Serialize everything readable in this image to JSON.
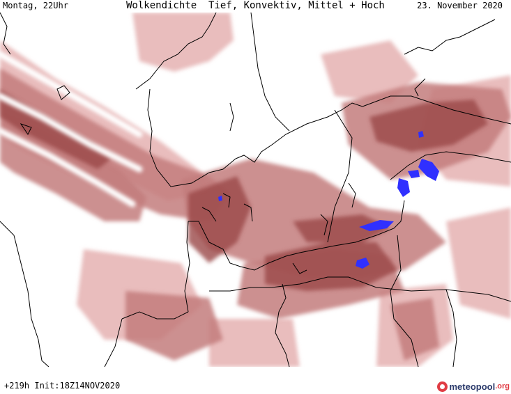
{
  "header": {
    "left": "Montag, 22Uhr",
    "title": "Wolkendichte  Tief, Konvektiv, Mittel + Hoch",
    "date": "23. November 2020"
  },
  "footer": {
    "init": "+219h Init:18Z14NOV2020",
    "brand_main": "meteopool",
    "brand_suffix": ".org"
  },
  "colors": {
    "cloud_light": "#e7b6b6",
    "cloud_mid": "#c37d7d",
    "cloud_dark": "#9a4848",
    "precip": "#3030ff",
    "coastline": "#000000"
  }
}
